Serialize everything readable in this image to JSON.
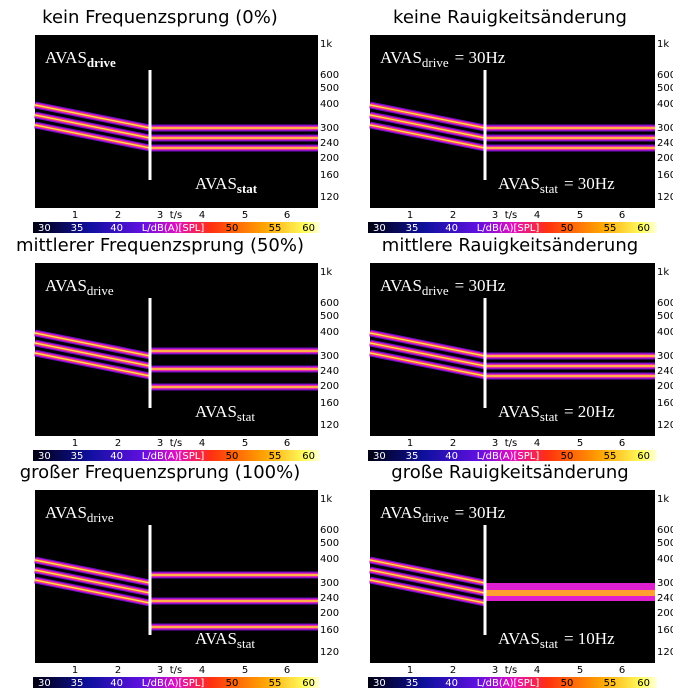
{
  "panels": [
    {
      "title": "kein Frequenzsprung (0%)",
      "drive": {
        "text": "AVAS",
        "sub": "drive"
      },
      "stat": {
        "text": "AVAS",
        "sub": "stat"
      }
    },
    {
      "title": "keine Rauigkeitsänderung",
      "drive": {
        "text": "AVAS",
        "sub": "drive",
        "suffix": "= 30Hz"
      },
      "stat": {
        "text": "AVAS",
        "sub": "stat",
        "suffix": "= 30Hz"
      }
    },
    {
      "title": "mittlerer Frequenzsprung (50%)",
      "drive": {
        "text": "AVAS",
        "sub": "drive"
      },
      "stat": {
        "text": "AVAS",
        "sub": "stat"
      }
    },
    {
      "title": "mittlere Rauigkeitsänderung",
      "drive": {
        "text": "AVAS",
        "sub": "drive",
        "suffix": "= 30Hz"
      },
      "stat": {
        "text": "AVAS",
        "sub": "stat",
        "suffix": "= 20Hz"
      }
    },
    {
      "title": "großer Frequenzsprung (100%)",
      "drive": {
        "text": "AVAS",
        "sub": "drive"
      },
      "stat": {
        "text": "AVAS",
        "sub": "stat"
      }
    },
    {
      "title": "große Rauigkeitsänderung",
      "drive": {
        "text": "AVAS",
        "sub": "drive",
        "suffix": "= 30Hz"
      },
      "stat": {
        "text": "AVAS",
        "sub": "stat",
        "suffix": "= 10Hz"
      }
    }
  ],
  "y_ticks": [
    "1k",
    "600",
    "500",
    "400",
    "300",
    "240",
    "200",
    "160",
    "120"
  ],
  "x_ticks": [
    "1",
    "2",
    "3",
    "t/s",
    "4",
    "5",
    "6"
  ],
  "colorbar_labels": [
    "30",
    "35",
    "40",
    "L/dB(A)[SPL]",
    "50",
    "55",
    "60"
  ]
}
